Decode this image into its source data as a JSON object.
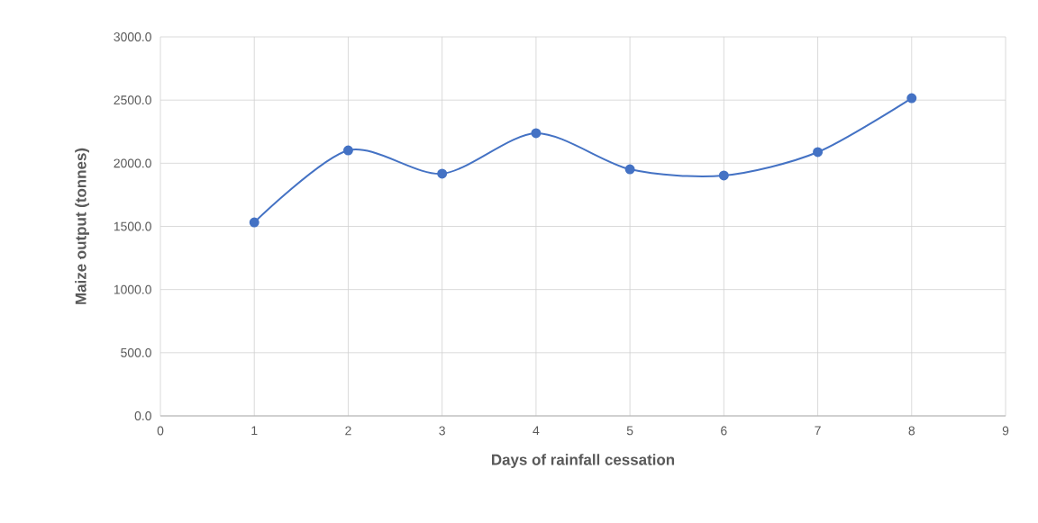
{
  "chart_data": {
    "type": "line",
    "xlabel": "Days of rainfall cessation",
    "ylabel": "Maize output (tonnes)",
    "x": [
      1,
      2,
      3,
      4,
      5,
      6,
      7,
      8
    ],
    "series": [
      {
        "color": "#4472c4",
        "values": [
          1532,
          2102,
          1917,
          2238,
          1952,
          1903,
          2088,
          2515
        ]
      }
    ],
    "xlim": [
      0,
      9
    ],
    "xticks": [
      0,
      1,
      2,
      3,
      4,
      5,
      6,
      7,
      8,
      9
    ],
    "ylim": [
      0,
      3000
    ],
    "yticks": [
      {
        "value": 0,
        "label": "0.0"
      },
      {
        "value": 500,
        "label": "500.0"
      },
      {
        "value": 1000,
        "label": "1000.0"
      },
      {
        "value": 1500,
        "label": "1500.0"
      },
      {
        "value": 2000,
        "label": "2000.0"
      },
      {
        "value": 2500,
        "label": "2500.0"
      },
      {
        "value": 3000,
        "label": "3000.0"
      }
    ],
    "grid": true,
    "marker": "circle",
    "line_style": "solid"
  }
}
